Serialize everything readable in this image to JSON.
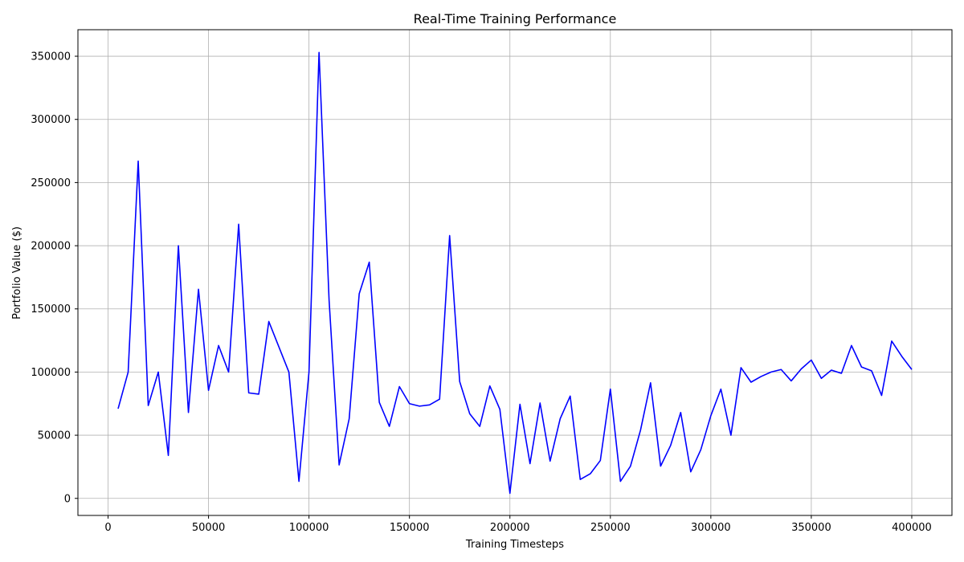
{
  "chart_data": {
    "type": "line",
    "title": "Real-Time Training Performance",
    "xlabel": "Training Timesteps",
    "ylabel": "Portfolio Value ($)",
    "xlim": [
      -15000,
      420000
    ],
    "ylim": [
      -13500,
      371000
    ],
    "x_ticks": [
      0,
      50000,
      100000,
      150000,
      200000,
      250000,
      300000,
      350000,
      400000
    ],
    "x_tick_labels": [
      "0",
      "50000",
      "100000",
      "150000",
      "200000",
      "250000",
      "300000",
      "350000",
      "400000"
    ],
    "y_ticks": [
      0,
      50000,
      100000,
      150000,
      200000,
      250000,
      300000,
      350000
    ],
    "y_tick_labels": [
      "0",
      "50000",
      "100000",
      "150000",
      "200000",
      "250000",
      "300000",
      "350000"
    ],
    "grid": true,
    "line_color": "#0000ff",
    "grid_color": "#b0b0b0",
    "series": [
      {
        "x": [
          5000,
          10000,
          15000,
          20000,
          25000,
          30000,
          35000,
          40000,
          45000,
          50000,
          55000,
          60000,
          65000,
          70000,
          75000,
          80000,
          85000,
          90000,
          95000,
          100000,
          105000,
          110000,
          115000,
          120000,
          125000,
          130000,
          135000,
          140000,
          145000,
          150000,
          155000,
          160000,
          165000,
          170000,
          175000,
          180000,
          185000,
          190000,
          195000,
          200000,
          205000,
          210000,
          215000,
          220000,
          225000,
          230000,
          235000,
          240000,
          245000,
          250000,
          255000,
          260000,
          265000,
          270000,
          275000,
          280000,
          285000,
          290000,
          295000,
          300000,
          305000,
          310000,
          315000,
          320000,
          325000,
          330000,
          335000,
          340000,
          345000,
          350000,
          355000,
          360000,
          365000,
          370000,
          375000,
          380000,
          385000,
          390000,
          395000,
          400000
        ],
        "y": [
          71000,
          100000,
          267000,
          73500,
          100000,
          34000,
          200000,
          68000,
          165500,
          85500,
          121000,
          100000,
          217000,
          83500,
          82500,
          140000,
          120000,
          100000,
          13500,
          100000,
          353000,
          157000,
          26500,
          63000,
          162000,
          187000,
          76000,
          57000,
          88500,
          75000,
          73000,
          74000,
          78500,
          208000,
          92500,
          67000,
          57000,
          89000,
          70500,
          4000,
          74500,
          27500,
          75500,
          29500,
          63000,
          81000,
          15000,
          19500,
          30000,
          86500,
          13500,
          25500,
          54000,
          91500,
          25500,
          42000,
          68000,
          21000,
          38500,
          65500,
          86500,
          50000,
          103500,
          92000,
          96500,
          100000,
          102000,
          93000,
          102500,
          109500,
          95000,
          101500,
          99000,
          121000,
          104000,
          101000,
          81500,
          124500,
          112500,
          102000
        ]
      }
    ]
  }
}
